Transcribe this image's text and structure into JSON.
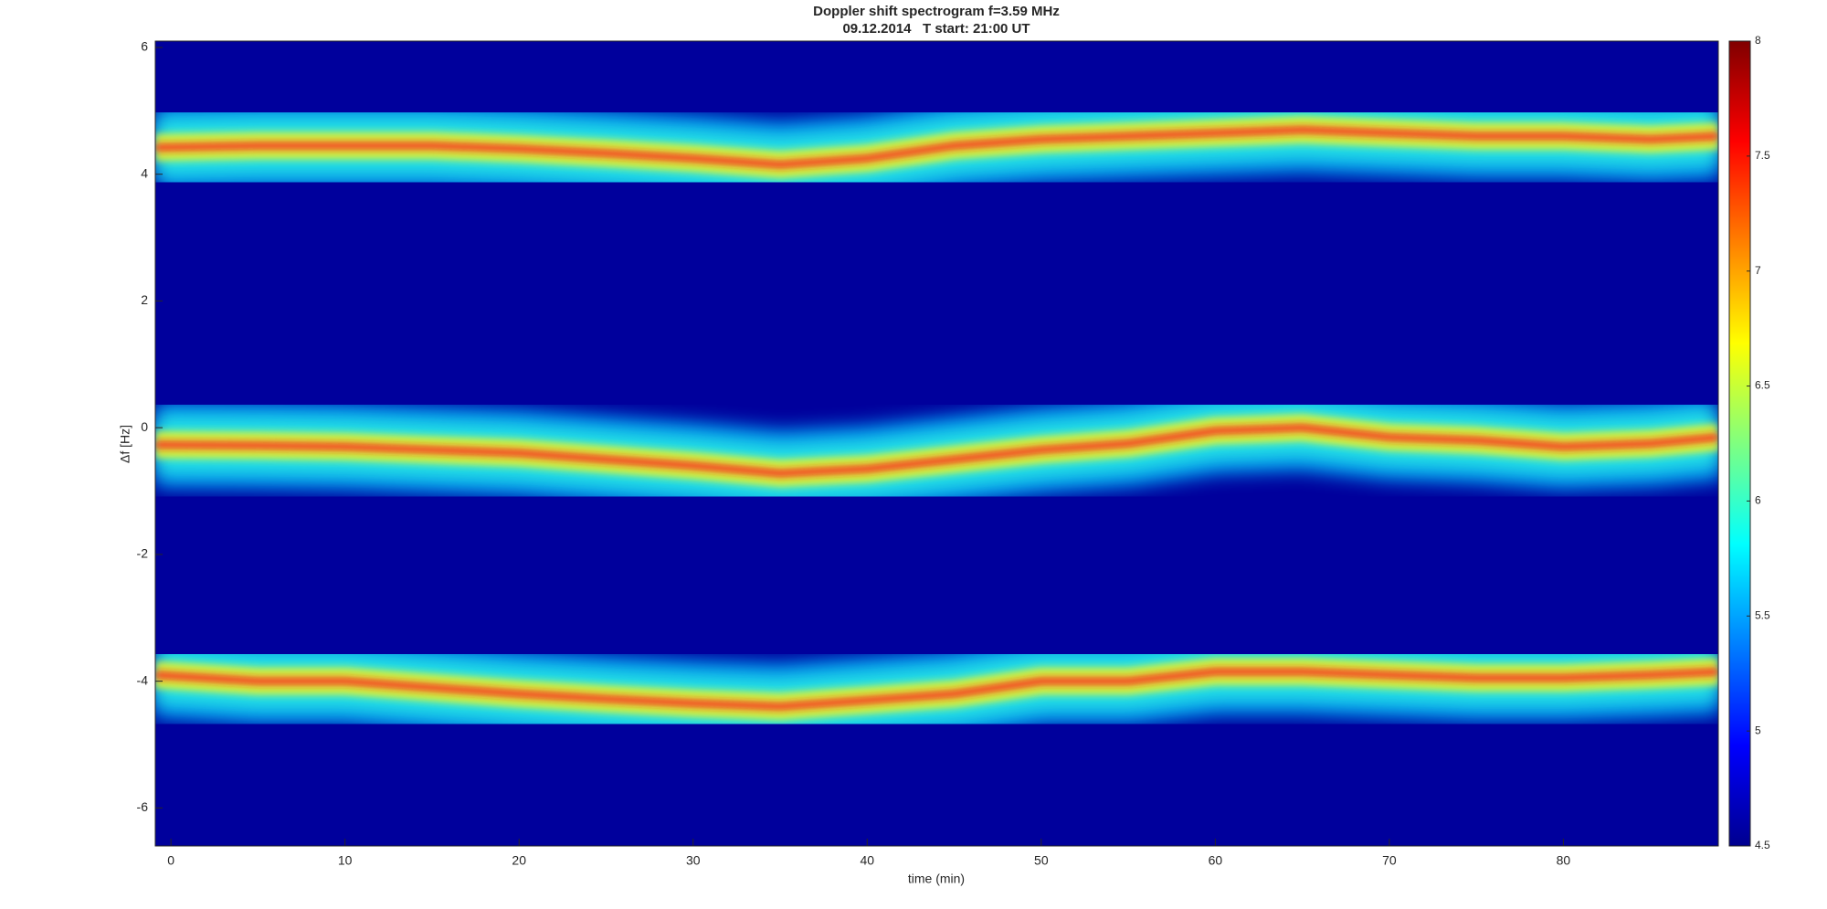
{
  "chart_data": {
    "type": "spectrogram",
    "title": "Doppler shift spectrogram f=3.59 MHz",
    "subtitle": "09.12.2014   T start: 21:00 UT",
    "xlabel": "time (min)",
    "ylabel": "Δf [Hz]",
    "background": "#00009c",
    "x": [
      -0.9,
      5,
      10,
      15,
      20,
      25,
      30,
      35,
      40,
      45,
      50,
      55,
      60,
      65,
      70,
      75,
      80,
      85,
      88.9
    ],
    "series": [
      {
        "color": "#ff1a1a",
        "values": [
          4.42,
          4.45,
          4.45,
          4.45,
          4.4,
          4.33,
          4.25,
          4.15,
          4.25,
          4.45,
          4.55,
          4.6,
          4.65,
          4.7,
          4.65,
          4.6,
          4.6,
          4.55,
          4.6
        ]
      },
      {
        "color": "#ff1a1a",
        "values": [
          -0.27,
          -0.28,
          -0.3,
          -0.35,
          -0.4,
          -0.5,
          -0.6,
          -0.72,
          -0.65,
          -0.5,
          -0.35,
          -0.25,
          -0.05,
          0.0,
          -0.15,
          -0.2,
          -0.3,
          -0.25,
          -0.15
        ]
      },
      {
        "color": "#ff1a1a",
        "values": [
          -3.9,
          -4.0,
          -4.0,
          -4.1,
          -4.2,
          -4.28,
          -4.35,
          -4.4,
          -4.3,
          -4.2,
          -4.0,
          -4.0,
          -3.85,
          -3.85,
          -3.9,
          -3.95,
          -3.95,
          -3.9,
          -3.85
        ]
      }
    ],
    "xlim": [
      -0.9,
      88.9
    ],
    "xticks": [
      0,
      10,
      20,
      30,
      40,
      50,
      60,
      70,
      80
    ],
    "ylim": [
      -6.6,
      6.1
    ],
    "yticks": [
      -6,
      -4,
      -2,
      0,
      2,
      4,
      6
    ],
    "colormap": "jet",
    "clim": [
      4.5,
      8
    ],
    "cticks": [
      4.5,
      5,
      5.5,
      6,
      6.5,
      7,
      7.5,
      8
    ]
  }
}
